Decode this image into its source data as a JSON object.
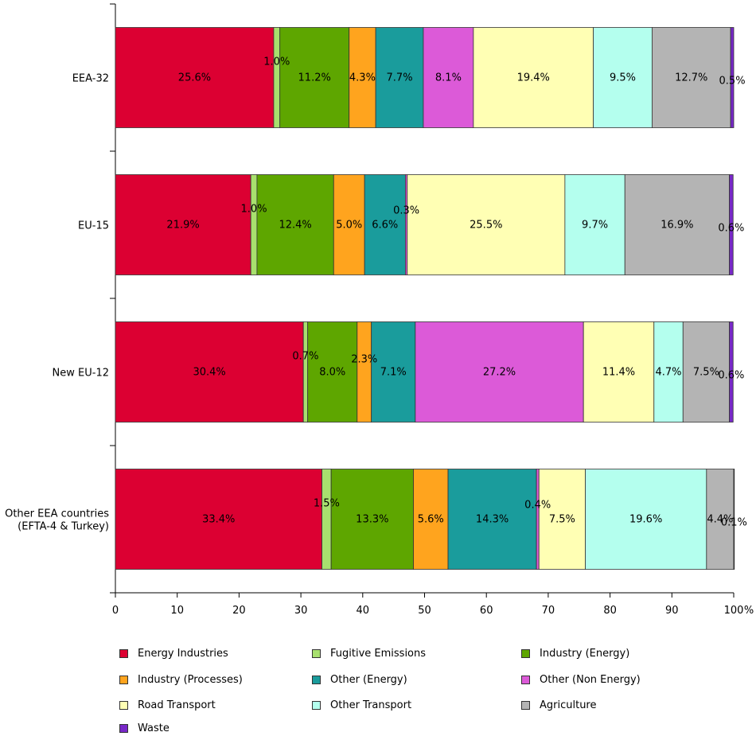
{
  "chart_data": {
    "type": "bar",
    "orientation": "horizontal",
    "stacked": true,
    "categories": [
      "EEA-32",
      "EU-15",
      "New EU-12",
      "Other EEA countries\n(EFTA-4 & Turkey)"
    ],
    "x_unit": "%",
    "xlim": [
      0,
      100
    ],
    "x_ticks": [
      0,
      10,
      20,
      30,
      40,
      50,
      60,
      70,
      80,
      90,
      100
    ],
    "grid": false,
    "legend_position": "bottom",
    "series": [
      {
        "name": "Energy Industries",
        "color": "#dc0032",
        "values": [
          25.6,
          21.9,
          30.4,
          33.4
        ],
        "labels": [
          "25.6%",
          "21.9%",
          "30.4%",
          "33.4%"
        ]
      },
      {
        "name": "Fugitive Emissions",
        "color": "#a8e06e",
        "values": [
          1.0,
          1.0,
          0.7,
          1.5
        ],
        "labels": [
          "1.0%",
          "1.0%",
          "0.7%",
          "1.5%"
        ]
      },
      {
        "name": "Industry (Energy)",
        "color": "#5ea600",
        "values": [
          11.2,
          12.4,
          8.0,
          13.3
        ],
        "labels": [
          "11.2%",
          "12.4%",
          "8.0%",
          "13.3%"
        ]
      },
      {
        "name": "Industry (Processes)",
        "color": "#ffa41e",
        "values": [
          4.3,
          5.0,
          2.3,
          5.6
        ],
        "labels": [
          "4.3%",
          "5.0%",
          "2.3%",
          "5.6%"
        ]
      },
      {
        "name": "Other (Energy)",
        "color": "#1a9c9c",
        "values": [
          7.7,
          6.6,
          7.1,
          14.3
        ],
        "labels": [
          "7.7%",
          "6.6%",
          "7.1%",
          "14.3%"
        ]
      },
      {
        "name": "Other (Non Energy)",
        "color": "#dc5ad8",
        "values": [
          8.1,
          0.3,
          27.2,
          0.4
        ],
        "labels": [
          "8.1%",
          "0.3%",
          "27.2%",
          "0.4%"
        ]
      },
      {
        "name": "Road Transport",
        "color": "#ffffb4",
        "values": [
          19.4,
          25.5,
          11.4,
          7.5
        ],
        "labels": [
          "19.4%",
          "25.5%",
          "11.4%",
          "7.5%"
        ]
      },
      {
        "name": "Other Transport",
        "color": "#b4ffee",
        "values": [
          9.5,
          9.7,
          4.7,
          19.6
        ],
        "labels": [
          "9.5%",
          "9.7%",
          "4.7%",
          "19.6%"
        ]
      },
      {
        "name": "Agriculture",
        "color": "#b4b4b4",
        "values": [
          12.7,
          16.9,
          7.5,
          4.4
        ],
        "labels": [
          "12.7%",
          "16.9%",
          "7.5%",
          "4.4%"
        ]
      },
      {
        "name": "Waste",
        "color": "#7828c8",
        "values": [
          0.5,
          0.6,
          0.6,
          0.1
        ],
        "labels": [
          "0.5%",
          "0.6%",
          "0.6%",
          "0.1%"
        ]
      }
    ]
  }
}
